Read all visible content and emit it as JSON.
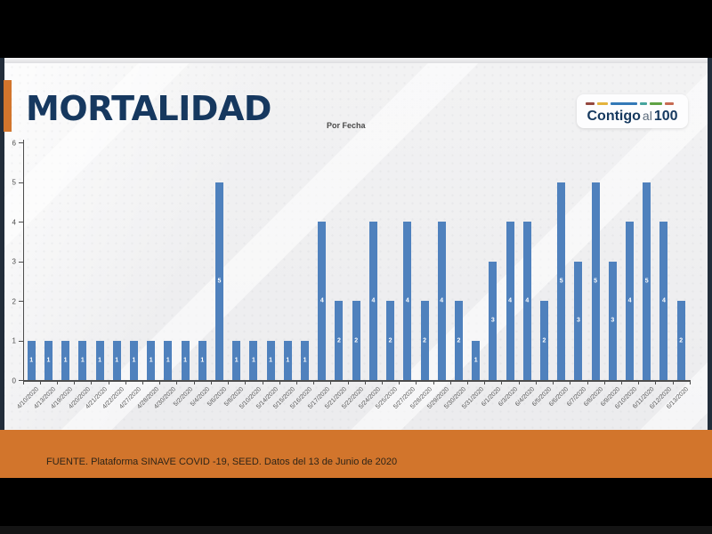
{
  "slide": {
    "title": "MORTALIDAD",
    "title_color": "#16385f",
    "accent_color": "#d2752c"
  },
  "logo": {
    "part1": "Contigo",
    "part2": "al",
    "part3": "100",
    "dash_colors": [
      "#94473e",
      "#e4b33c",
      "#3379b7",
      "#45a49d",
      "#5fa244",
      "#c66a52"
    ],
    "dash_widths": [
      10,
      12,
      30,
      8,
      14,
      10
    ]
  },
  "chart_data": {
    "type": "bar",
    "title": "Por Fecha",
    "categories": [
      "4/10/2020",
      "4/13/2020",
      "4/19/2020",
      "4/20/2020",
      "4/21/2020",
      "4/22/2020",
      "4/27/2020",
      "4/28/2020",
      "4/30/2020",
      "5/2/2020",
      "5/4/2020",
      "5/6/2020",
      "5/8/2020",
      "5/10/2020",
      "5/14/2020",
      "5/15/2020",
      "5/16/2020",
      "5/17/2020",
      "5/21/2020",
      "5/22/2020",
      "5/24/2020",
      "5/25/2020",
      "5/27/2020",
      "5/28/2020",
      "5/29/2020",
      "5/30/2020",
      "5/31/2020",
      "6/1/2020",
      "6/3/2020",
      "6/4/2020",
      "6/5/2020",
      "6/6/2020",
      "6/7/2020",
      "6/8/2020",
      "6/9/2020",
      "6/10/2020",
      "6/11/2020",
      "6/12/2020",
      "6/13/2020"
    ],
    "values": [
      1,
      1,
      1,
      1,
      1,
      1,
      1,
      1,
      1,
      1,
      1,
      5,
      1,
      1,
      1,
      1,
      1,
      4,
      2,
      2,
      4,
      2,
      4,
      2,
      4,
      2,
      1,
      3,
      4,
      4,
      2,
      5,
      3,
      5,
      3,
      4,
      5,
      4,
      2
    ],
    "xlabel": "",
    "ylabel": "",
    "ylim": [
      0,
      6
    ],
    "yticks": [
      0,
      1,
      2,
      3,
      4,
      5,
      6
    ],
    "grid": false,
    "legend": "none",
    "bar_color": "#4f81bd",
    "value_label_color": "#ffffff",
    "value_labels_shown": true
  },
  "footer": {
    "source_text": "FUENTE. Plataforma SINAVE COVID -19, SEED. Datos del 13 de Junio de 2020",
    "band_color": "#d2752c"
  }
}
